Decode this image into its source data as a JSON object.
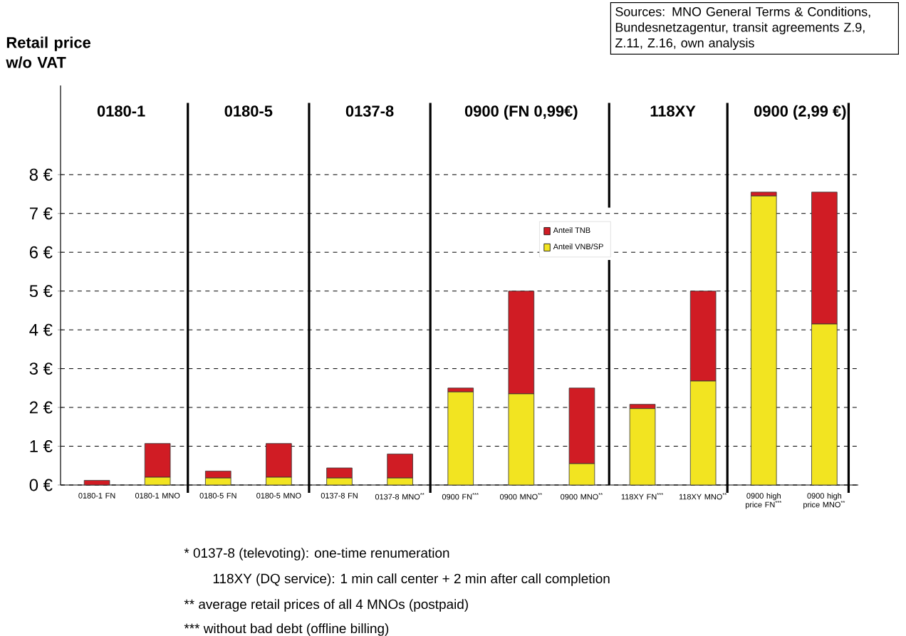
{
  "chart_data": {
    "type": "bar",
    "stacked": true,
    "ylabel": "Retail price w/o VAT",
    "categories": [
      "0180-1 FN",
      "0180-1 MNO",
      "0180-5 FN",
      "0180-5 MNO",
      "0137-8 FN",
      "0137-8 MNO$^{**}$",
      "0900 FN$^{***}$",
      "0900 MNO$^{**}$",
      "0900 MNO$^{**}$",
      "118XY FN$^{***}$",
      "118XY MNO$^{**}$",
      "0900 high price FN$^{***}$",
      "0900 high price MNO$^{**}$"
    ],
    "series": [
      {
        "name": "Anteil VNB/SP",
        "color": "#f2e421",
        "values": [
          0,
          0.2,
          0.18,
          0.2,
          0.18,
          0.18,
          2.4,
          2.35,
          0.55,
          1.97,
          2.68,
          7.45,
          4.15
        ]
      },
      {
        "name": "Anteil TNB",
        "color": "#d01c24",
        "values": [
          0.12,
          0.87,
          0.18,
          0.87,
          0.26,
          0.62,
          0.1,
          2.65,
          1.95,
          0.11,
          2.32,
          0.1,
          3.4
        ]
      }
    ],
    "ylim": [
      0,
      10.3
    ],
    "yticks": [
      {
        "value": 0,
        "label": "0 €"
      },
      {
        "value": 1,
        "label": "1 €"
      },
      {
        "value": 2,
        "label": "2 €"
      },
      {
        "value": 3,
        "label": "3 €"
      },
      {
        "value": 4,
        "label": "4 €"
      },
      {
        "value": 5,
        "label": "5 €"
      },
      {
        "value": 6,
        "label": "6 €"
      },
      {
        "value": 7,
        "label": "7 €"
      },
      {
        "value": 8,
        "label": "8 €"
      }
    ],
    "grid": "y",
    "legend": "center",
    "annotations": [
      "0180-1",
      "0180-5",
      "0137-8",
      "0900 (FN 0,99€)",
      "118XY",
      "0900 (2,99 €)",
      "Sources: MNO General Terms & Conditions, Bundesnetzagentur, transit agreements Z.9, Z.11, Z.16, own analysis",
      "*   0137-8 (televoting): one-time renumeration",
      "118XY (DQ service): 1 min call center + 2 min after call completion",
      "** average retail prices of all 4 MNOs (postpaid)",
      "*** without bad debt (offline billing)"
    ]
  }
}
